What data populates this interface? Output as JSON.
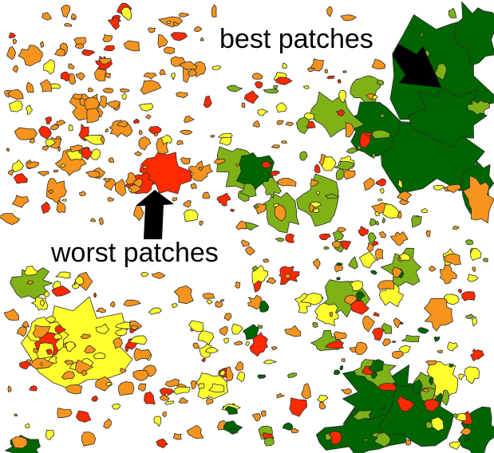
{
  "map": {
    "legend_colors": {
      "best": "#006400",
      "good": "#7fb217",
      "medium": "#ffff2e",
      "poor": "#f7941d",
      "worst": "#ff2a00",
      "outline": "#2a2a2a"
    },
    "background": "#ffffff"
  },
  "annotations": {
    "best_label": "best patches",
    "worst_label": "worst patches",
    "arrow_icon": "thick-arrow-icon",
    "arrow_color": "#000000"
  }
}
